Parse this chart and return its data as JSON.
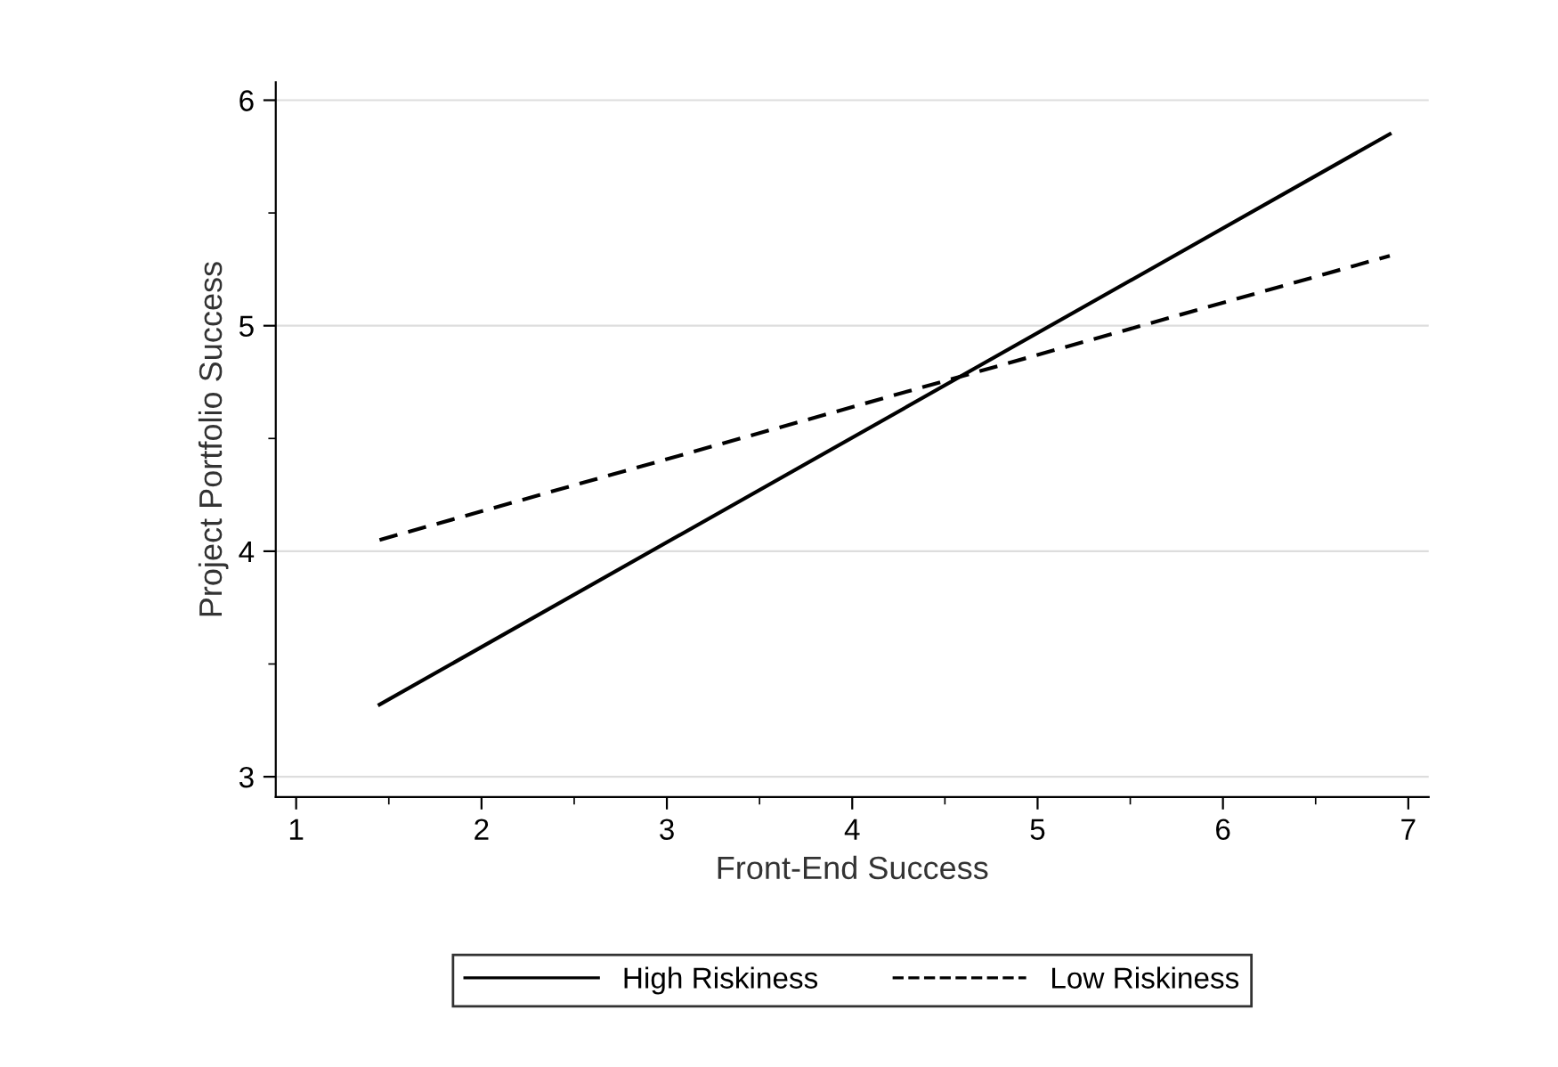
{
  "chart_data": {
    "type": "line",
    "xlabel": "Front-End Success",
    "ylabel": "Project Portfolio Success",
    "x": [
      1.45,
      6.9
    ],
    "series": [
      {
        "name": "High Riskiness",
        "color": "#000000",
        "values": [
          3.32,
          5.85
        ],
        "line_style": "solid"
      },
      {
        "name": "Low Riskiness",
        "color": "#000000",
        "values": [
          4.05,
          5.31
        ],
        "line_style": "dashed"
      }
    ],
    "xlim": [
      0.89,
      7.11
    ],
    "ylim": [
      2.91,
      6.08
    ],
    "xticks": [
      1,
      2,
      3,
      4,
      5,
      6,
      7
    ],
    "yticks": [
      3,
      4,
      5,
      6
    ],
    "grid": "y",
    "legend": "bottom",
    "marker": "none"
  }
}
